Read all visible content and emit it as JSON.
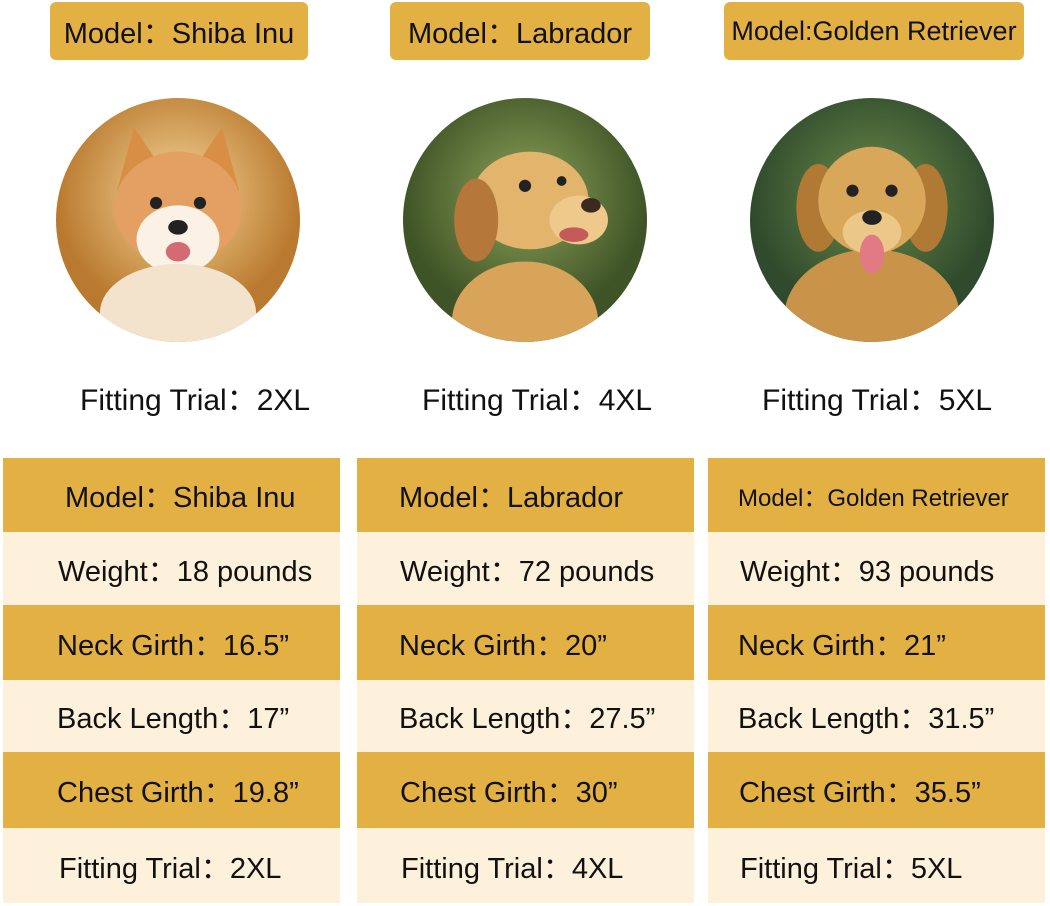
{
  "colors": {
    "gold": "#E2B043",
    "cream": "#FDF1DC"
  },
  "dogs": [
    {
      "model_label": "Model：Shiba Inu",
      "photo_icon": "shiba-inu-photo",
      "fitting_trial_label": "Fitting Trial：2XL",
      "table": {
        "model": "Model：Shiba Inu",
        "weight": "Weight：18 pounds",
        "neck_girth": "Neck Girth：16.5”",
        "back_length": "Back Length：17”",
        "chest_girth": "Chest Girth：19.8”",
        "fitting_trial": "Fitting Trial：2XL"
      }
    },
    {
      "model_label": "Model：Labrador",
      "photo_icon": "labrador-photo",
      "fitting_trial_label": "Fitting Trial：4XL",
      "table": {
        "model": "Model：Labrador",
        "weight": "Weight：72 pounds",
        "neck_girth": "Neck Girth：20”",
        "back_length": "Back Length：27.5”",
        "chest_girth": "Chest Girth：30”",
        "fitting_trial": "Fitting Trial：4XL"
      }
    },
    {
      "model_label": "Model:Golden Retriever",
      "photo_icon": "golden-retriever-photo",
      "fitting_trial_label": "Fitting Trial：5XL",
      "table": {
        "model": "Model：Golden Retriever",
        "weight": "Weight：93 pounds",
        "neck_girth": "Neck Girth：21”",
        "back_length": "Back Length：31.5”",
        "chest_girth": "Chest Girth：35.5”",
        "fitting_trial": "Fitting Trial：5XL"
      }
    }
  ]
}
